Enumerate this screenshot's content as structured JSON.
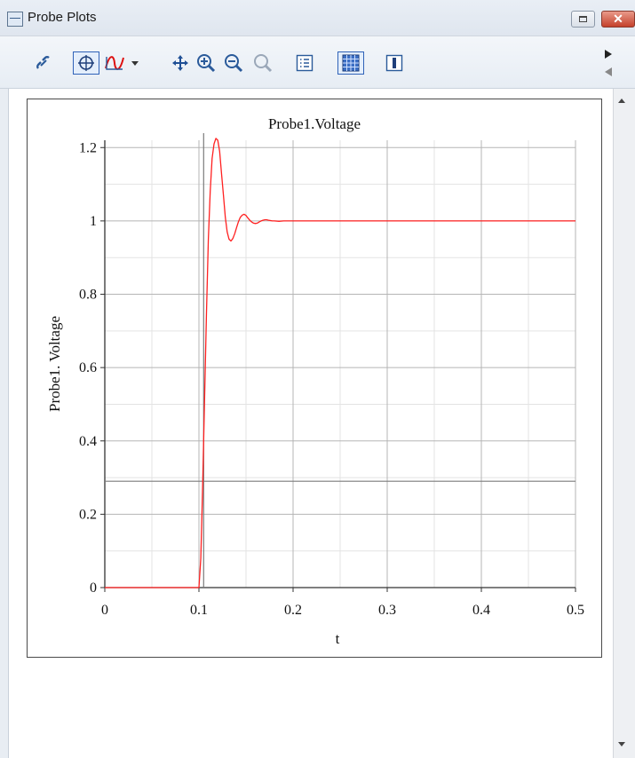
{
  "window": {
    "title": "Probe Plots"
  },
  "toolbar": {
    "items": [
      "link-icon",
      "crosshair-icon",
      "curve-icon",
      "dropdown-arrow-icon",
      "pan-icon",
      "zoom-in-icon",
      "zoom-out-icon",
      "zoom-fit-icon",
      "legend-icon",
      "grid-icon",
      "cursor-icon"
    ]
  },
  "chart_data": {
    "type": "line",
    "title": "Probe1.Voltage",
    "xlabel": "t",
    "ylabel": "Probe1. Voltage",
    "xlim": [
      0,
      0.5
    ],
    "ylim": [
      0,
      1.22
    ],
    "x_ticks": [
      "0",
      "0.1",
      "0.2",
      "0.3",
      "0.4",
      "0.5"
    ],
    "y_ticks": [
      "0",
      "0.2",
      "0.4",
      "0.6",
      "0.8",
      "1",
      "1.2"
    ],
    "grid": true,
    "legend": "none",
    "series": [
      {
        "color": "#ff2020",
        "x": [
          0,
          0.1,
          0.102,
          0.104,
          0.106,
          0.108,
          0.11,
          0.112,
          0.114,
          0.116,
          0.118,
          0.12,
          0.122,
          0.124,
          0.126,
          0.128,
          0.13,
          0.132,
          0.134,
          0.136,
          0.138,
          0.14,
          0.142,
          0.144,
          0.146,
          0.148,
          0.15,
          0.152,
          0.154,
          0.156,
          0.158,
          0.16,
          0.162,
          0.164,
          0.166,
          0.168,
          0.17,
          0.172,
          0.174,
          0.176,
          0.178,
          0.18,
          0.185,
          0.19,
          0.2,
          0.3,
          0.4,
          0.5
        ],
        "y": [
          0,
          0,
          0.08,
          0.28,
          0.52,
          0.75,
          0.95,
          1.08,
          1.17,
          1.21,
          1.225,
          1.22,
          1.19,
          1.13,
          1.07,
          1.01,
          0.97,
          0.95,
          0.945,
          0.952,
          0.965,
          0.982,
          0.998,
          1.01,
          1.016,
          1.018,
          1.015,
          1.008,
          1.002,
          0.997,
          0.994,
          0.993,
          0.994,
          0.997,
          1.0,
          1.002,
          1.003,
          1.003,
          1.002,
          1.001,
          1.0,
          1.0,
          0.999,
          1.0,
          1.0,
          1.0,
          1.0,
          1.0
        ]
      }
    ],
    "cursor_lines": {
      "x": 0.105,
      "y": 0.29
    }
  }
}
